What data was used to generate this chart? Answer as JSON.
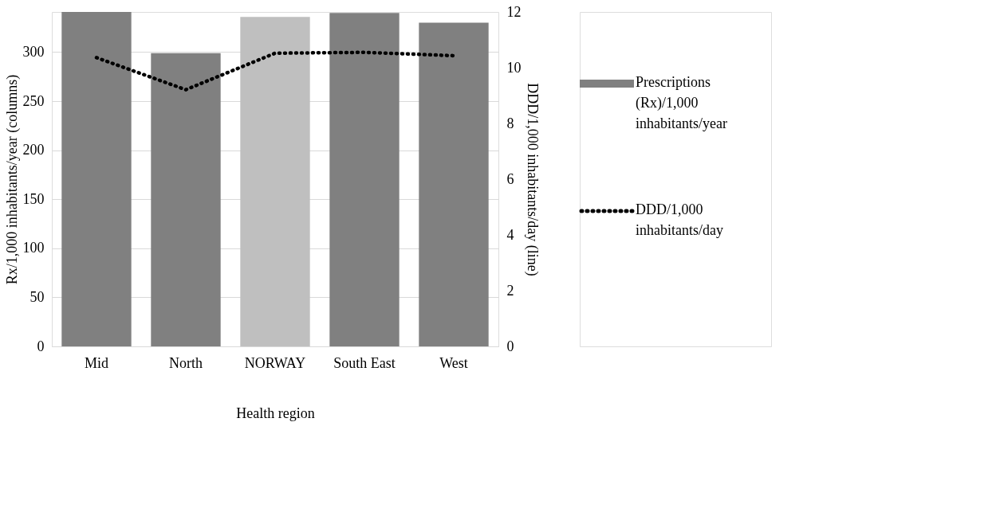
{
  "chart_data": {
    "type": "bar",
    "xlabel": "Health region",
    "ylabel": "Rx/1,000 inhabitants/year (columns)",
    "y2label": "DDD/1,000 inhabitants/day (line)",
    "categories": [
      "Mid",
      "North",
      "NORWAY",
      "South East",
      "West"
    ],
    "series": [
      {
        "name": "Prescriptions (Rx)/1,000 inhabitants/year",
        "colors": [
          "#808080",
          "#808080",
          "#bfbfbf",
          "#808080",
          "#808080"
        ],
        "values": [
          341,
          299,
          336,
          340,
          330
        ]
      },
      {
        "name": "DDD/1,000 inhabitants/day",
        "type": "line",
        "axis": "y2",
        "color": "#000000",
        "line_style": "dotted",
        "values": [
          10.36,
          9.21,
          10.52,
          10.55,
          10.43
        ]
      }
    ],
    "ylim": [
      0,
      341
    ],
    "yticks": [
      0,
      50,
      100,
      150,
      200,
      250,
      300
    ],
    "y2lim": [
      0,
      12
    ],
    "y2ticks": [
      0,
      2,
      4,
      6,
      8,
      10,
      12
    ],
    "grid": "y",
    "legend": "right"
  }
}
